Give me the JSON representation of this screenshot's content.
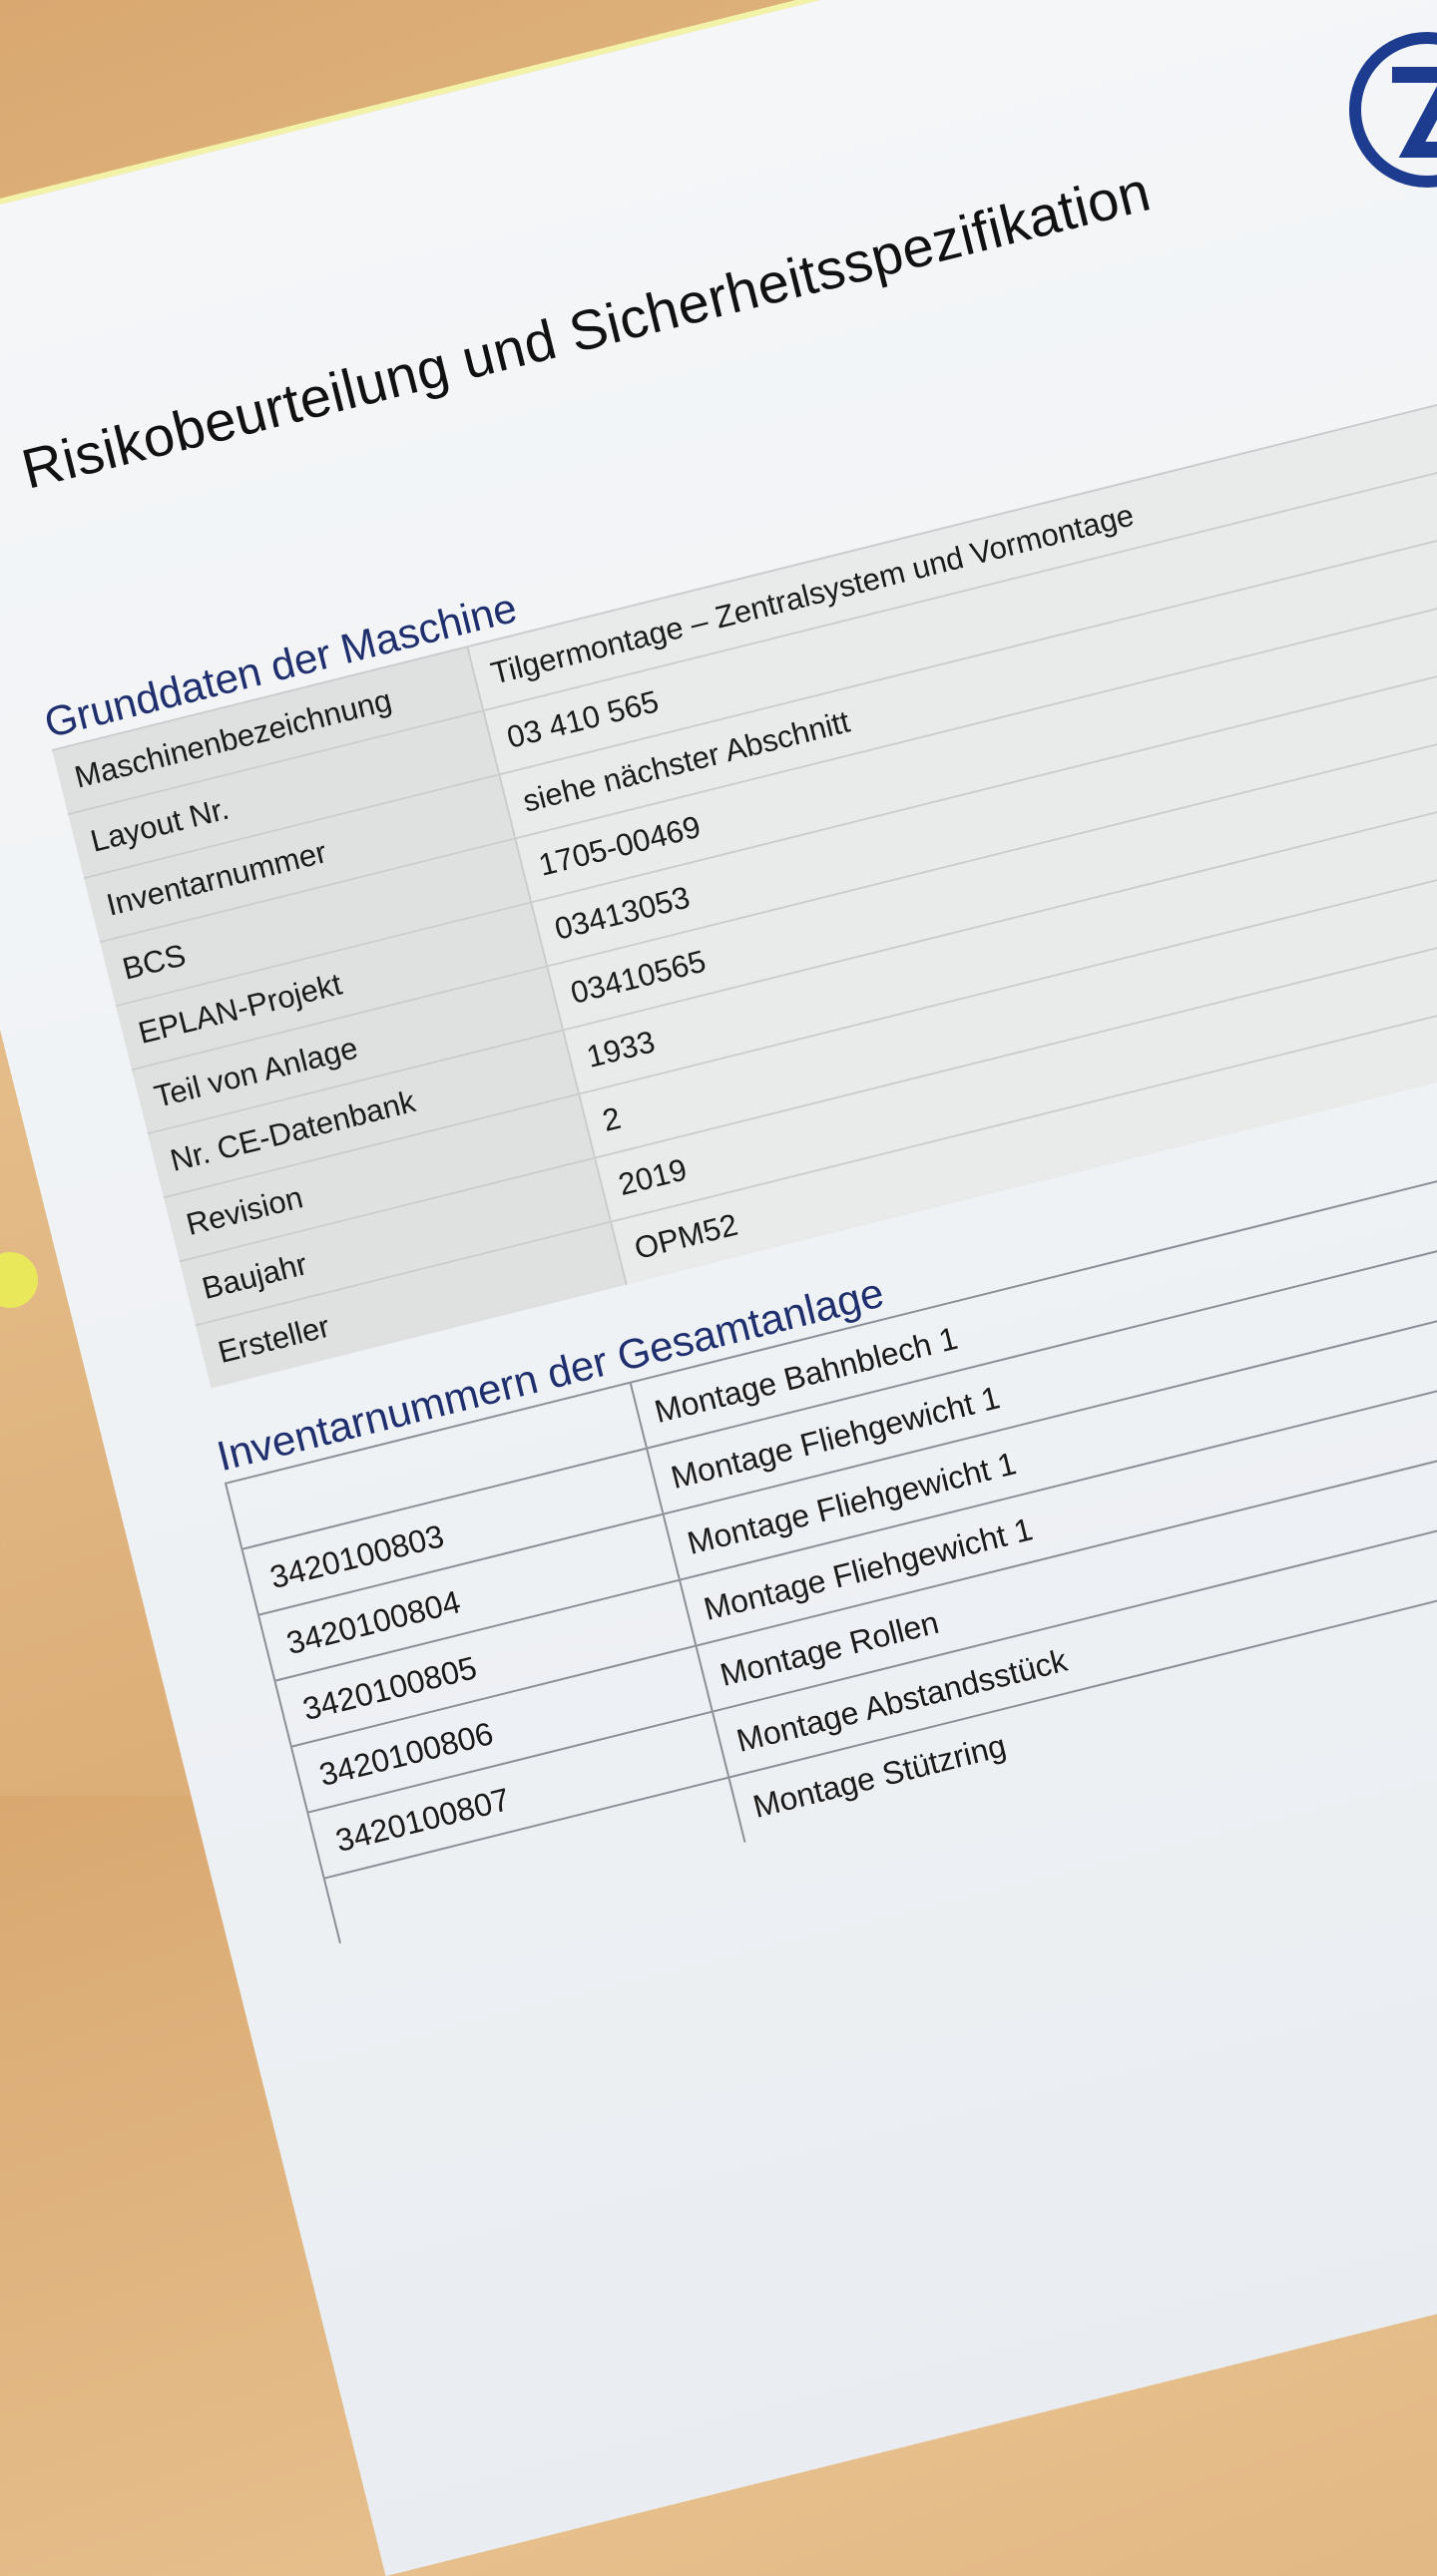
{
  "document": {
    "title": "Risikobeurteilung und Sicherheitsspezifikation",
    "logo": {
      "text": "ZF",
      "color": "#1d3c8f"
    },
    "section1": {
      "heading": "Grunddaten der Maschine",
      "rows": [
        {
          "label": "Maschinenbezeichnung",
          "value": "Tilgermontage – Zentralsystem und Vormontage"
        },
        {
          "label": "Layout Nr.",
          "value": "03 410 565"
        },
        {
          "label": "Inventarnummer",
          "value": "siehe nächster Abschnitt"
        },
        {
          "label": "BCS",
          "value": "1705-00469"
        },
        {
          "label": "EPLAN-Projekt",
          "value": "03413053"
        },
        {
          "label": "Teil von Anlage",
          "value": "03410565"
        },
        {
          "label": "Nr. CE-Datenbank",
          "value": "1933"
        },
        {
          "label": "Revision",
          "value": "2"
        },
        {
          "label": "Baujahr",
          "value": "2019"
        },
        {
          "label": "Ersteller",
          "value": "OPM52"
        }
      ]
    },
    "section2": {
      "heading": "Inventarnummern der Gesamtanlage",
      "rows": [
        {
          "number": "",
          "description": "Montage Bahnblech 1"
        },
        {
          "number": "3420100803",
          "description": "Montage Fliehgewicht 1"
        },
        {
          "number": "3420100804",
          "description": "Montage Fliehgewicht 1"
        },
        {
          "number": "3420100805",
          "description": "Montage Fliehgewicht 1"
        },
        {
          "number": "3420100806",
          "description": "Montage Rollen"
        },
        {
          "number": "3420100807",
          "description": "Montage Abstandsstück"
        },
        {
          "number": "",
          "description": "Montage Stützring"
        }
      ]
    }
  }
}
